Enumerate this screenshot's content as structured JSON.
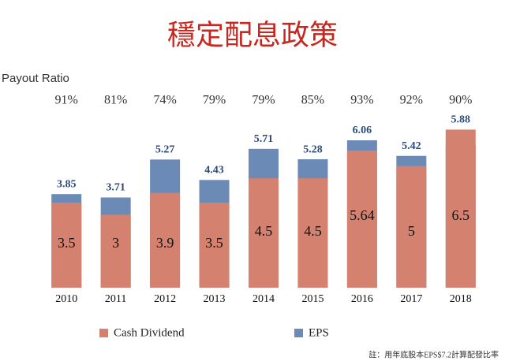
{
  "chart_data": {
    "type": "overlap-bar",
    "title": "穩定配息政策",
    "categories": [
      "2010",
      "2011",
      "2012",
      "2013",
      "2014",
      "2015",
      "2016",
      "2017",
      "2018"
    ],
    "series": [
      {
        "name": "Cash Dividend",
        "color": "#d4826f",
        "values": [
          3.5,
          3,
          3.9,
          3.5,
          4.5,
          4.5,
          5.64,
          5,
          6.5
        ]
      },
      {
        "name": "EPS",
        "color": "#6b8bb6",
        "values": [
          3.85,
          3.71,
          5.27,
          4.43,
          5.71,
          5.28,
          6.06,
          5.42,
          5.88
        ]
      }
    ],
    "payout_ratio": {
      "label": "Payout Ratio",
      "values": [
        91,
        81,
        74,
        79,
        79,
        85,
        93,
        92,
        90
      ],
      "value_labels": [
        "91%",
        "81%",
        "74%",
        "79%",
        "79%",
        "85%",
        "93%",
        "92%",
        "90%"
      ]
    },
    "ylim": [
      0,
      7
    ],
    "note": "註：用年底股本EPS$7.2計算配發比率"
  }
}
